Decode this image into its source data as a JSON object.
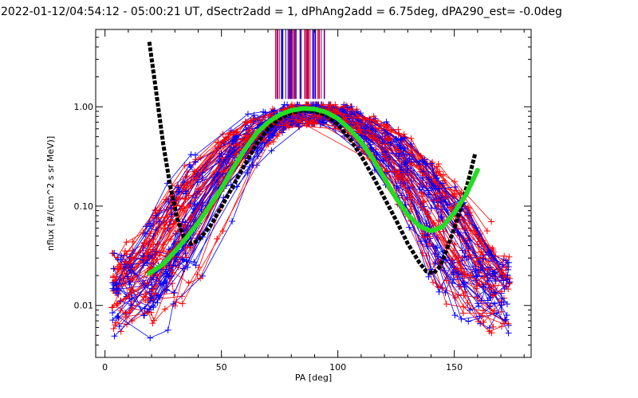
{
  "chart_data": {
    "type": "line",
    "title": "2022-01-12/04:54:12 - 05:00:21 UT, dSectr2add = 1, dPhAng2add = 6.75deg, dPA290_est=  -0.0deg",
    "xlabel": "PA [deg]",
    "ylabel": "nflux [#/(cm^2 s sr MeV)]",
    "xlim": [
      -4,
      183
    ],
    "ylim": [
      0.003,
      6.0
    ],
    "yscale": "log",
    "xticks": [
      0,
      50,
      100,
      150
    ],
    "xtick_labels": [
      "0",
      "50",
      "100",
      "150"
    ],
    "yticks": [
      0.01,
      0.1,
      1.0
    ],
    "ytick_labels": [
      "0.01",
      "0.10",
      "1.00"
    ],
    "grid": false,
    "legend": "none",
    "colors": {
      "red": "#ff0000",
      "blue": "#0000ff",
      "purple": "#a0007a",
      "black": "#000000",
      "green": "#22dd22"
    },
    "series": [
      {
        "color": "#000000",
        "style": "thick-dashed",
        "x": [
          19,
          22,
          25,
          28,
          31,
          34,
          37,
          40,
          45,
          50,
          55,
          60,
          65,
          70,
          75,
          80,
          85,
          90,
          95,
          100,
          105,
          110,
          115,
          120,
          125,
          130,
          135,
          138,
          141,
          144,
          147,
          150,
          153,
          156,
          159
        ],
        "y": [
          4.5,
          1.4,
          0.42,
          0.16,
          0.075,
          0.047,
          0.042,
          0.045,
          0.062,
          0.098,
          0.16,
          0.26,
          0.42,
          0.6,
          0.76,
          0.87,
          0.92,
          0.9,
          0.82,
          0.66,
          0.48,
          0.32,
          0.2,
          0.12,
          0.072,
          0.042,
          0.027,
          0.022,
          0.021,
          0.025,
          0.038,
          0.06,
          0.1,
          0.18,
          0.34
        ]
      },
      {
        "color": "#22dd22",
        "style": "thick-dotted",
        "x": [
          19,
          25,
          30,
          35,
          40,
          45,
          50,
          55,
          60,
          65,
          70,
          75,
          80,
          85,
          90,
          95,
          100,
          105,
          110,
          115,
          120,
          125,
          130,
          135,
          140,
          145,
          150,
          155,
          160
        ],
        "y": [
          0.021,
          0.026,
          0.035,
          0.048,
          0.068,
          0.1,
          0.15,
          0.24,
          0.37,
          0.54,
          0.7,
          0.83,
          0.92,
          0.96,
          0.95,
          0.88,
          0.76,
          0.6,
          0.44,
          0.3,
          0.19,
          0.12,
          0.082,
          0.063,
          0.056,
          0.062,
          0.086,
          0.13,
          0.23
        ]
      }
    ],
    "scatter_bundles": [
      {
        "color": "#ff0000",
        "name": ""
      },
      {
        "color": "#0000ff",
        "name": ""
      }
    ],
    "vertical_lines": {
      "x_range": [
        73,
        95
      ],
      "y_range": [
        1.2,
        6.0
      ],
      "colors": [
        "#ff0000",
        "#0000ff",
        "#a0007a"
      ]
    }
  }
}
